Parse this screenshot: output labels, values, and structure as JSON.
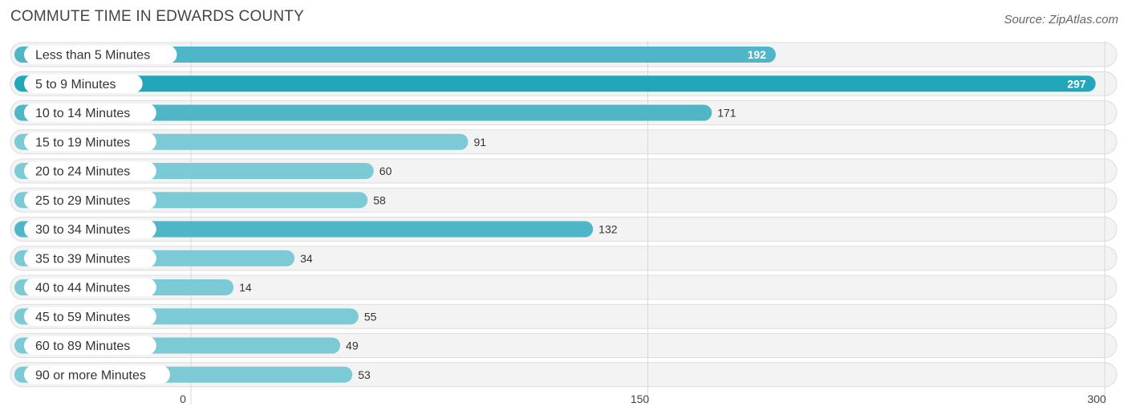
{
  "header": {
    "title": "COMMUTE TIME IN EDWARDS COUNTY",
    "source": "Source: ZipAtlas.com"
  },
  "chart_data": {
    "type": "bar",
    "orientation": "horizontal",
    "title": "COMMUTE TIME IN EDWARDS COUNTY",
    "categories": [
      "Less than 5 Minutes",
      "5 to 9 Minutes",
      "10 to 14 Minutes",
      "15 to 19 Minutes",
      "20 to 24 Minutes",
      "25 to 29 Minutes",
      "30 to 34 Minutes",
      "35 to 39 Minutes",
      "40 to 44 Minutes",
      "45 to 59 Minutes",
      "60 to 89 Minutes",
      "90 or more Minutes"
    ],
    "values": [
      192,
      297,
      171,
      91,
      60,
      58,
      132,
      34,
      14,
      55,
      49,
      53
    ],
    "xlim": [
      0,
      300
    ],
    "xticks": [
      0,
      150,
      300
    ],
    "xlabel": "",
    "ylabel": "",
    "grid": true,
    "colors": {
      "bar_max": "#22a7ba",
      "bar_strong": "#4fb6c7",
      "bar_light": "#7ccad6",
      "row_background": "#f3f3f3"
    }
  }
}
